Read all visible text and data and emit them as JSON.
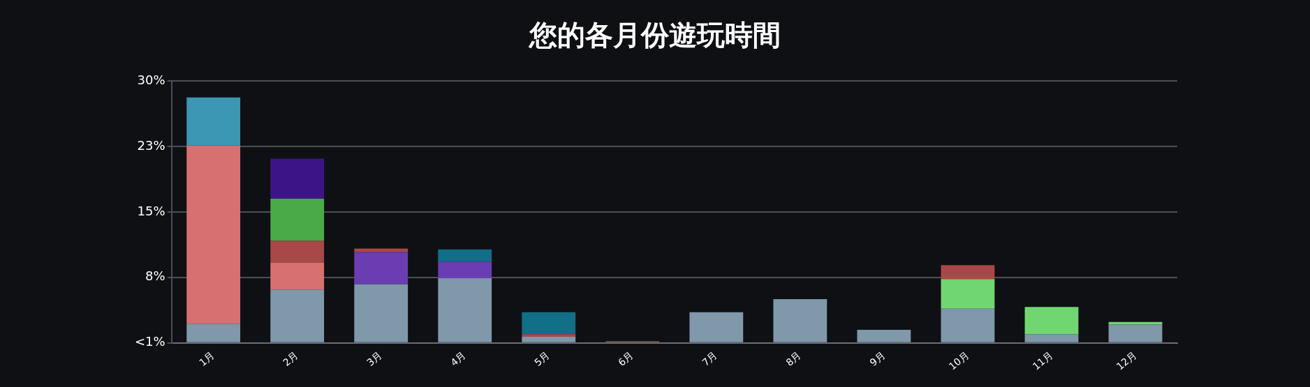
{
  "chart_data": {
    "type": "bar",
    "title": "您的各月份遊玩時間",
    "stacked": true,
    "categories": [
      "1月",
      "2月",
      "3月",
      "4月",
      "5月",
      "6月",
      "7月",
      "8月",
      "9月",
      "10月",
      "11月",
      "12月"
    ],
    "series": [
      {
        "color": "#7f98aa",
        "values": [
          2.2,
          6.1,
          6.7,
          7.4,
          0.7,
          null,
          3.5,
          5.0,
          1.5,
          3.9,
          1.0,
          2.1
        ]
      },
      {
        "color": "#d77070",
        "values": [
          20.4,
          3.1,
          null,
          null,
          null,
          null,
          null,
          null,
          null,
          null,
          null,
          null
        ]
      },
      {
        "color": "#6a3db3",
        "values": [
          null,
          null,
          3.7,
          1.9,
          null,
          null,
          null,
          null,
          null,
          null,
          null,
          null
        ]
      },
      {
        "color": "#70d672",
        "values": [
          null,
          null,
          null,
          null,
          null,
          null,
          null,
          null,
          null,
          3.4,
          3.1,
          0.3
        ]
      },
      {
        "color": "#a94848",
        "values": [
          null,
          2.5,
          0.4,
          null,
          0.3,
          0.2,
          null,
          null,
          null,
          1.6,
          null,
          null
        ]
      },
      {
        "color": "#48ab48",
        "values": [
          null,
          4.8,
          null,
          null,
          null,
          null,
          null,
          null,
          null,
          null,
          null,
          null
        ]
      },
      {
        "color": "#116f88",
        "values": [
          null,
          null,
          null,
          1.4,
          2.5,
          null,
          null,
          null,
          null,
          null,
          null,
          null
        ]
      },
      {
        "color": "#3b97b3",
        "values": [
          5.5,
          null,
          null,
          null,
          null,
          null,
          null,
          null,
          null,
          null,
          null,
          null
        ]
      },
      {
        "color": "#3d1487",
        "values": [
          null,
          4.6,
          null,
          null,
          null,
          null,
          null,
          null,
          null,
          null,
          null,
          null
        ]
      }
    ],
    "ylim": [
      0,
      30
    ],
    "yticks": [
      {
        "value": 0,
        "label": "<1%"
      },
      {
        "value": 7.5,
        "label": "8%"
      },
      {
        "value": 15,
        "label": "15%"
      },
      {
        "value": 22.5,
        "label": "23%"
      },
      {
        "value": 30,
        "label": "30%"
      }
    ],
    "grid": "y",
    "legend": false
  }
}
